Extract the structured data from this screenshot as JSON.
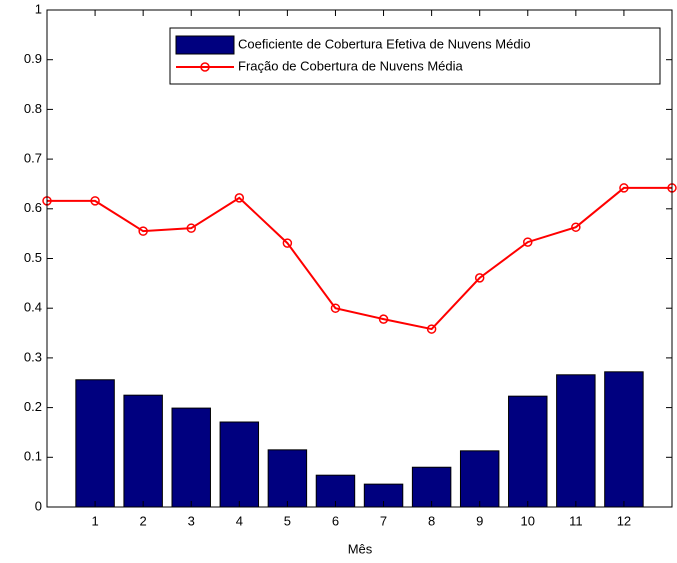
{
  "chart_data": {
    "type": "bar",
    "xlabel": "Mês",
    "xlim": [
      0,
      13
    ],
    "xticks": [
      1,
      2,
      3,
      4,
      5,
      6,
      7,
      8,
      9,
      10,
      11,
      12
    ],
    "ylim": [
      0,
      1
    ],
    "yticks": [
      0,
      0.1,
      0.2,
      0.3,
      0.4,
      0.5,
      0.6,
      0.7,
      0.8,
      0.9,
      1
    ],
    "legend": "upper right",
    "series": [
      {
        "name": "Coeficiente de Cobertura Efetiva de Nuvens Médio",
        "type": "bar",
        "color": "#00007f",
        "x": [
          1,
          2,
          3,
          4,
          5,
          6,
          7,
          8,
          9,
          10,
          11,
          12
        ],
        "values": [
          0.256,
          0.225,
          0.199,
          0.171,
          0.115,
          0.064,
          0.046,
          0.08,
          0.113,
          0.223,
          0.266,
          0.272
        ]
      },
      {
        "name": "Fração de Cobertura de Nuvens Média",
        "type": "line",
        "color": "#ff0000",
        "x": [
          0,
          1,
          2,
          3,
          4,
          5,
          6,
          7,
          8,
          9,
          10,
          11,
          12,
          13
        ],
        "values": [
          0.616,
          0.616,
          0.555,
          0.561,
          0.622,
          0.531,
          0.4,
          0.378,
          0.358,
          0.461,
          0.533,
          0.563,
          0.642,
          0.642
        ]
      }
    ]
  }
}
